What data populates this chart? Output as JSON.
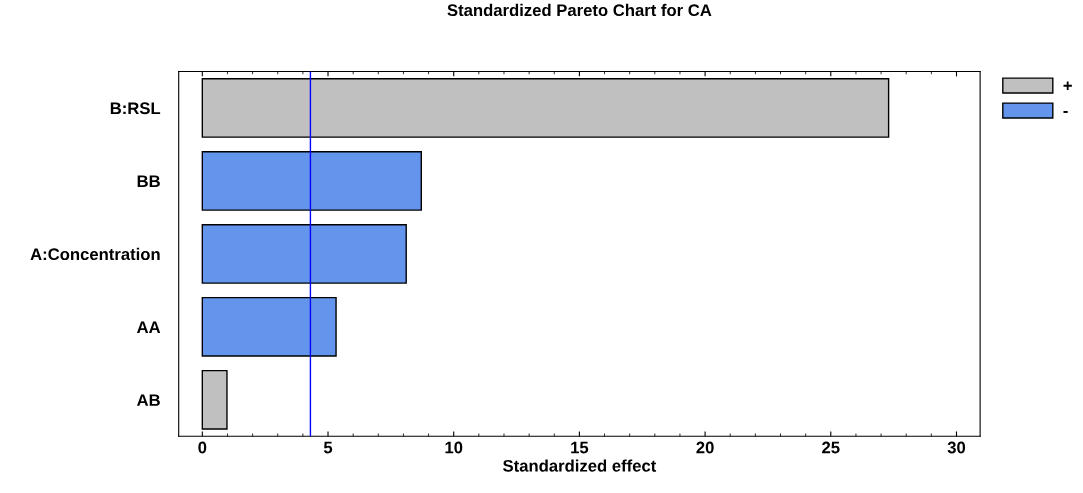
{
  "chart_data": {
    "type": "bar",
    "orientation": "horizontal",
    "title": "Standardized Pareto Chart for CA",
    "xlabel": "Standardized effect",
    "categories": [
      "B:RSL",
      "BB",
      "A:Concentration",
      "AA",
      "AB"
    ],
    "series": [
      {
        "name": "+",
        "color": "#c0c0c0",
        "values": [
          27.3,
          null,
          null,
          null,
          0.98
        ]
      },
      {
        "name": "-",
        "color": "#6495ed",
        "values": [
          null,
          8.71,
          8.11,
          5.32,
          null
        ]
      }
    ],
    "xlim": [
      -0.94,
      30.94
    ],
    "xticks": [
      0,
      5,
      10,
      15,
      20,
      25,
      30
    ],
    "ref_lines": [
      {
        "axis": "x",
        "value": 4.3,
        "color": "#0000ff"
      }
    ],
    "legend": "top right",
    "grid": false
  }
}
